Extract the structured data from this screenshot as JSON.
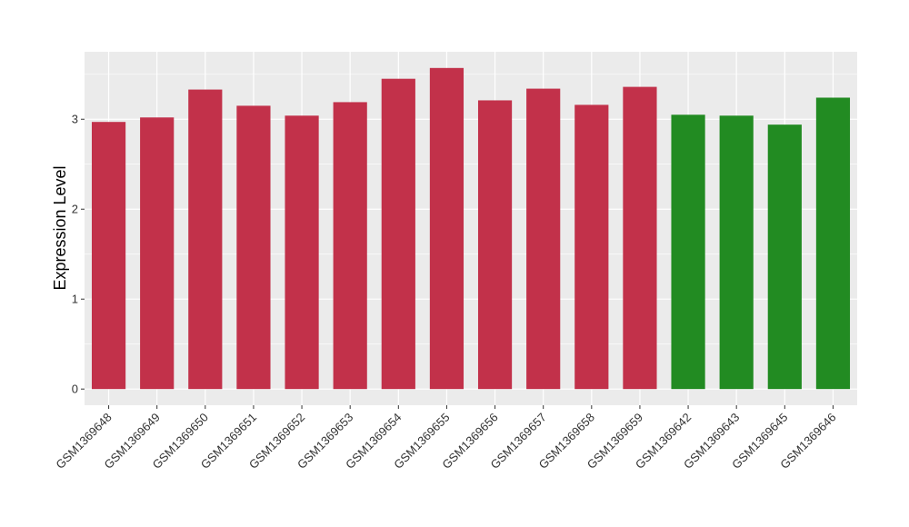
{
  "chart_data": {
    "type": "bar",
    "title": "",
    "xlabel": "",
    "ylabel": "Expression Level",
    "ylim": [
      -0.18,
      3.75
    ],
    "yticks": [
      0,
      1,
      2,
      3
    ],
    "grid": true,
    "legend": "none",
    "categories": [
      "GSM1369648",
      "GSM1369649",
      "GSM1369650",
      "GSM1369651",
      "GSM1369652",
      "GSM1369653",
      "GSM1369654",
      "GSM1369655",
      "GSM1369656",
      "GSM1369657",
      "GSM1369658",
      "GSM1369659",
      "GSM1369642",
      "GSM1369643",
      "GSM1369645",
      "GSM1369646"
    ],
    "values": [
      2.97,
      3.02,
      3.33,
      3.15,
      3.04,
      3.19,
      3.45,
      3.57,
      3.21,
      3.34,
      3.16,
      3.36,
      3.05,
      3.04,
      2.94,
      3.24
    ],
    "bar_colors": [
      "#C2314A",
      "#C2314A",
      "#C2314A",
      "#C2314A",
      "#C2314A",
      "#C2314A",
      "#C2314A",
      "#C2314A",
      "#C2314A",
      "#C2314A",
      "#C2314A",
      "#C2314A",
      "#228B22",
      "#228B22",
      "#228B22",
      "#228B22"
    ],
    "panel_background": "#EBEBEB",
    "grid_color": "#FFFFFF"
  }
}
